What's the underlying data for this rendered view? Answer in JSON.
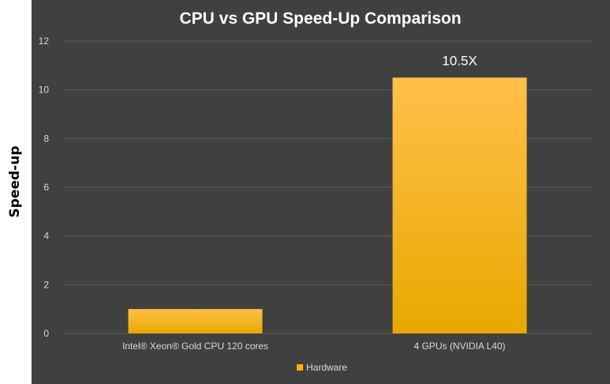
{
  "chart_data": {
    "type": "bar",
    "title": "CPU vs GPU Speed-Up Comparison",
    "ylabel": "Speed-up",
    "xlabel": "",
    "categories": [
      "Intel® Xeon® Gold CPU 120 cores",
      "4 GPUs (NVIDIA L40)"
    ],
    "series": [
      {
        "name": "Hardware",
        "values": [
          1,
          10.5
        ],
        "data_labels": [
          "",
          "10.5X"
        ]
      }
    ],
    "ylim": [
      0,
      12
    ],
    "yticks": [
      0,
      2,
      4,
      6,
      8,
      10,
      12
    ],
    "ytick_labels": [
      "0",
      "2",
      "4",
      "6",
      "8",
      "10",
      "12"
    ],
    "grid": true,
    "legend": "bottom",
    "colors": {
      "background": "#404040",
      "bar_top": "#ffc04a",
      "bar_bottom": "#e8a800",
      "gridline": "#5a5a5a",
      "axis_text": "#d9d9d9",
      "title_text": "#ffffff",
      "legend_swatch": "#ffb400"
    }
  }
}
